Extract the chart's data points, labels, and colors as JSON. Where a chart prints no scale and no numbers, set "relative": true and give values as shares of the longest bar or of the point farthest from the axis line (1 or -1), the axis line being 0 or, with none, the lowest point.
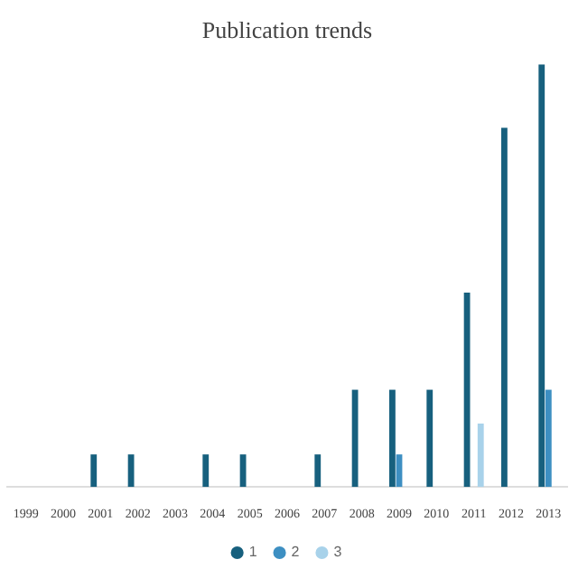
{
  "chart_data": {
    "type": "bar",
    "title": "Publication trends",
    "relative": true,
    "categories": [
      "1999",
      "2000",
      "2001",
      "2002",
      "2003",
      "2004",
      "2005",
      "2006",
      "2007",
      "2008",
      "2009",
      "2010",
      "2011",
      "2012",
      "2013"
    ],
    "series": [
      {
        "name": "1",
        "color": "#17607e",
        "values": [
          0,
          0,
          0.077,
          0.077,
          0,
          0.077,
          0.077,
          0,
          0.077,
          0.23,
          0.23,
          0.23,
          0.46,
          0.85,
          1
        ]
      },
      {
        "name": "2",
        "color": "#3d8fc2",
        "values": [
          0,
          0,
          0,
          0,
          0,
          0,
          0,
          0,
          0,
          0,
          0.077,
          0,
          0,
          0,
          0.23
        ]
      },
      {
        "name": "3",
        "color": "#a8d2ea",
        "values": [
          0,
          0,
          0,
          0,
          0,
          0,
          0,
          0,
          0,
          0,
          0,
          0,
          0.15,
          0,
          null
        ]
      }
    ],
    "legend": "bottom"
  }
}
